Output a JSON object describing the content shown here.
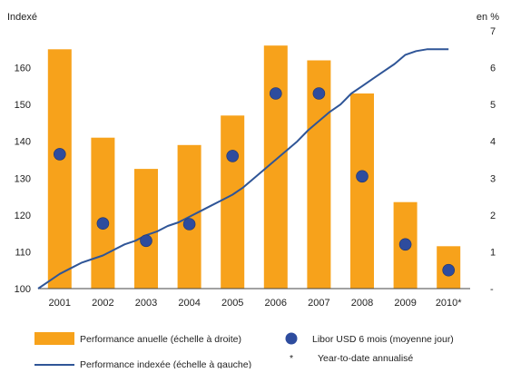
{
  "chart_data": {
    "type": "bar",
    "categories": [
      "2001",
      "2002",
      "2003",
      "2004",
      "2005",
      "2006",
      "2007",
      "2008",
      "2009",
      "2010*"
    ],
    "left_axis": {
      "label": "Indexé",
      "ylim": [
        100,
        170
      ],
      "ticks": [
        "100",
        "110",
        "120",
        "130",
        "140",
        "150",
        "160"
      ]
    },
    "right_axis": {
      "label": "en %",
      "ylim": [
        0,
        7
      ],
      "ticks": [
        "-",
        "1",
        "2",
        "3",
        "4",
        "5",
        "6",
        "7"
      ]
    },
    "series": [
      {
        "name": "Performance anuelle (échelle à droite)",
        "type": "bar",
        "axis": "right",
        "color": "#F7A21B",
        "values": [
          6.5,
          4.1,
          3.25,
          3.9,
          4.7,
          6.6,
          6.2,
          5.3,
          2.35,
          1.15
        ]
      },
      {
        "name": "Libor USD 6 mois (moyenne jour)",
        "type": "scatter",
        "axis": "right",
        "color": "#2E4C9E",
        "values": [
          3.65,
          1.77,
          1.3,
          1.75,
          3.6,
          5.3,
          5.3,
          3.05,
          1.2,
          0.5
        ]
      },
      {
        "name": "Performance indexée (échelle à gauche)",
        "type": "line",
        "axis": "left",
        "color": "#2F5597",
        "x": [
          0,
          0.25,
          0.5,
          0.75,
          1.0,
          1.25,
          1.5,
          1.75,
          2.0,
          2.25,
          2.5,
          2.75,
          3.0,
          3.25,
          3.5,
          3.75,
          4.0,
          4.25,
          4.5,
          4.75,
          5.0,
          5.25,
          5.5,
          5.75,
          6.0,
          6.25,
          6.5,
          6.75,
          7.0,
          7.25,
          7.5,
          7.75,
          8.0,
          8.25,
          8.5,
          8.75,
          9.0,
          9.25,
          9.5
        ],
        "values": [
          100.0,
          102.0,
          104.0,
          105.5,
          107.0,
          108.0,
          109.0,
          110.5,
          112.0,
          113.0,
          114.5,
          115.5,
          117.0,
          118.0,
          119.5,
          121.0,
          122.5,
          124.0,
          125.5,
          127.5,
          130.0,
          132.5,
          135.0,
          137.5,
          140.0,
          143.0,
          145.5,
          148.0,
          150.0,
          153.0,
          155.0,
          157.0,
          159.0,
          161.0,
          163.5,
          164.5,
          165.0,
          165.0,
          165.0
        ]
      }
    ],
    "footnote": "Year-to-date annualisé",
    "footnote_marker": "*",
    "grid": false,
    "legend_position": "bottom"
  }
}
